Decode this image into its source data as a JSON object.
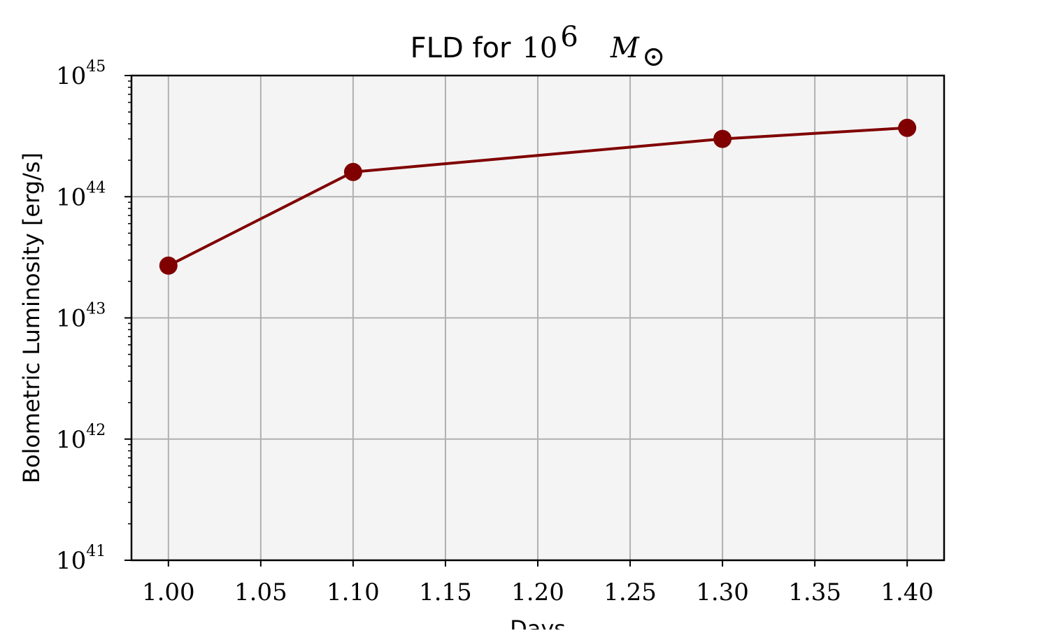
{
  "chart_data": {
    "type": "line",
    "title": {
      "prefix": "FLD for",
      "base": "10",
      "exponent": "6",
      "unit_symbol": "M",
      "unit_subscript": "⊙"
    },
    "xlabel": "Days",
    "ylabel": "Bolometric Luminosity [erg/s]",
    "x_scale": "linear",
    "y_scale": "log",
    "xlim": [
      0.98,
      1.42
    ],
    "ylim": [
      1e+41,
      1e+45
    ],
    "x_ticks": [
      1.0,
      1.05,
      1.1,
      1.15,
      1.2,
      1.25,
      1.3,
      1.35,
      1.4
    ],
    "x_tick_labels": [
      "1.00",
      "1.05",
      "1.10",
      "1.15",
      "1.20",
      "1.25",
      "1.30",
      "1.35",
      "1.40"
    ],
    "y_ticks": [
      {
        "value": 1e+41,
        "base": "10",
        "exponent": "41"
      },
      {
        "value": 1e+42,
        "base": "10",
        "exponent": "42"
      },
      {
        "value": 1e+43,
        "base": "10",
        "exponent": "43"
      },
      {
        "value": 1e+44,
        "base": "10",
        "exponent": "44"
      },
      {
        "value": 1e+45,
        "base": "10",
        "exponent": "45"
      }
    ],
    "grid": true,
    "legend": "none",
    "colors": {
      "line": "#800000",
      "plot_background": "#f4f4f4",
      "grid": "#b0b0b0",
      "axes": "#000000"
    },
    "series": [
      {
        "x": [
          1.0,
          1.1,
          1.3,
          1.4
        ],
        "y": [
          2.7e+43,
          1.6e+44,
          3e+44,
          3.7e+44
        ]
      }
    ]
  }
}
